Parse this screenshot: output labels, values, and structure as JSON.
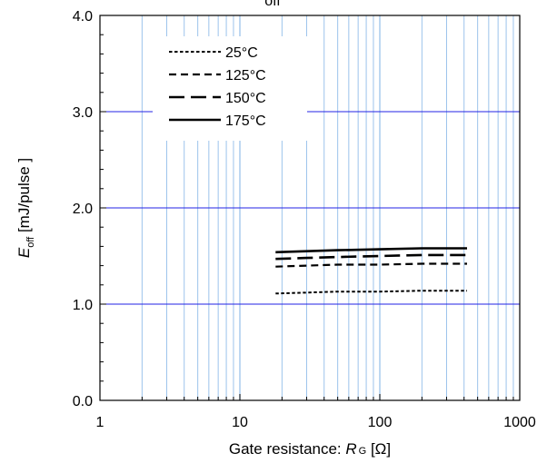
{
  "chart_data": {
    "type": "line",
    "title_partial": "off",
    "xlabel": {
      "prefix": "Gate resistance: ",
      "symbol": "R",
      "sub": "G",
      "unit": " [Ω]"
    },
    "ylabel": {
      "symbol": "E",
      "sub": "off",
      "unit": " [mJ/pulse ]"
    },
    "xscale": "log",
    "xlim": [
      1,
      1000
    ],
    "ylim": [
      0.0,
      4.0
    ],
    "x_tick_labels": [
      "1",
      "10",
      "100",
      "1000"
    ],
    "y_tick_labels": [
      "0.0",
      "1.0",
      "2.0",
      "3.0",
      "4.0"
    ],
    "grid": true,
    "legend_position": "top-left",
    "series": [
      {
        "name": "25°C",
        "style": "dotted",
        "x": [
          18,
          30,
          50,
          100,
          200,
          420
        ],
        "y": [
          1.11,
          1.12,
          1.13,
          1.13,
          1.14,
          1.14
        ]
      },
      {
        "name": "125°C",
        "style": "short-dash",
        "x": [
          18,
          30,
          50,
          100,
          200,
          420
        ],
        "y": [
          1.39,
          1.4,
          1.41,
          1.41,
          1.42,
          1.42
        ]
      },
      {
        "name": "150°C",
        "style": "long-dash",
        "x": [
          18,
          30,
          50,
          100,
          200,
          420
        ],
        "y": [
          1.47,
          1.48,
          1.49,
          1.5,
          1.51,
          1.51
        ]
      },
      {
        "name": "175°C",
        "style": "solid",
        "x": [
          18,
          30,
          50,
          100,
          200,
          420
        ],
        "y": [
          1.54,
          1.55,
          1.56,
          1.57,
          1.58,
          1.58
        ]
      }
    ],
    "colors": {
      "major_grid": "#2323e6",
      "minor_grid": "#9cc3ec",
      "line": "#000000"
    }
  }
}
